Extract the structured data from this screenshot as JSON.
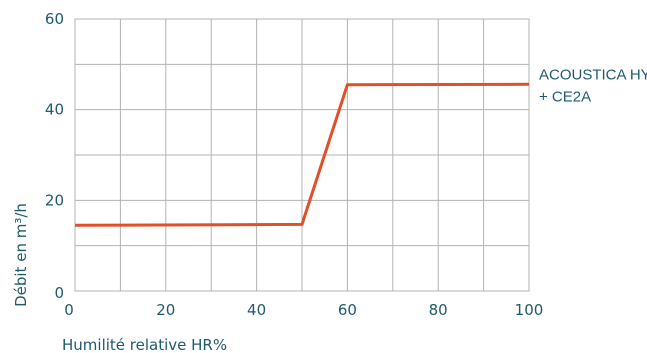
{
  "chart_data": {
    "type": "line",
    "xlabel": "Humilité relative HR%",
    "ylabel": "Débit en m³/h",
    "xlim": [
      0,
      100
    ],
    "ylim": [
      0,
      60
    ],
    "x_ticks": [
      0,
      20,
      40,
      60,
      80,
      100
    ],
    "y_ticks": [
      0,
      20,
      40,
      60
    ],
    "x_grid_step": 10,
    "y_grid_step": 10,
    "grid": true,
    "legend_position": "right",
    "series": [
      {
        "name_lines": [
          "ACOUSTICA HY",
          "+ CE2A"
        ],
        "color": "#e34f26",
        "points": [
          {
            "x": 0,
            "y": 14.5
          },
          {
            "x": 50,
            "y": 14.7
          },
          {
            "x": 60,
            "y": 45.5
          },
          {
            "x": 100,
            "y": 45.6
          }
        ]
      }
    ]
  }
}
